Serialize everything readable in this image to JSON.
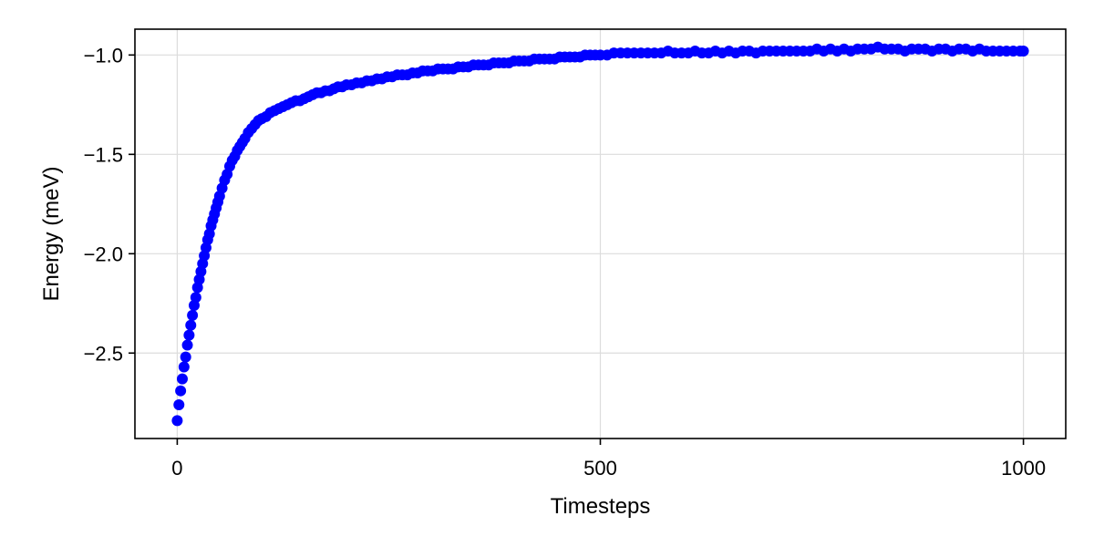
{
  "chart_data": {
    "type": "scatter",
    "title": "",
    "xlabel": "Timesteps",
    "ylabel": "Energy (meV)",
    "xlim": [
      -50,
      1050
    ],
    "ylim": [
      -2.93,
      -0.87
    ],
    "x_ticks": [
      {
        "value": 0,
        "label": "0"
      },
      {
        "value": 500,
        "label": "500"
      },
      {
        "value": 1000,
        "label": "1000"
      }
    ],
    "y_ticks": [
      {
        "value": -1.0,
        "label": "−1.0"
      },
      {
        "value": -1.5,
        "label": "−1.5"
      },
      {
        "value": -2.0,
        "label": "−2.0"
      },
      {
        "value": -2.5,
        "label": "−2.5"
      }
    ],
    "grid": true,
    "marker_color": "#0000ff",
    "series": [
      {
        "points": [
          [
            0,
            -2.84
          ],
          [
            2,
            -2.76
          ],
          [
            4,
            -2.69
          ],
          [
            6,
            -2.63
          ],
          [
            8,
            -2.57
          ],
          [
            10,
            -2.52
          ],
          [
            12,
            -2.46
          ],
          [
            14,
            -2.41
          ],
          [
            16,
            -2.36
          ],
          [
            18,
            -2.31
          ],
          [
            20,
            -2.26
          ],
          [
            22,
            -2.22
          ],
          [
            24,
            -2.17
          ],
          [
            26,
            -2.13
          ],
          [
            28,
            -2.09
          ],
          [
            30,
            -2.05
          ],
          [
            32,
            -2.01
          ],
          [
            34,
            -1.97
          ],
          [
            36,
            -1.93
          ],
          [
            38,
            -1.9
          ],
          [
            40,
            -1.86
          ],
          [
            42,
            -1.83
          ],
          [
            44,
            -1.8
          ],
          [
            46,
            -1.77
          ],
          [
            48,
            -1.74
          ],
          [
            50,
            -1.71
          ],
          [
            53,
            -1.67
          ],
          [
            56,
            -1.63
          ],
          [
            59,
            -1.6
          ],
          [
            62,
            -1.56
          ],
          [
            65,
            -1.53
          ],
          [
            68,
            -1.51
          ],
          [
            71,
            -1.48
          ],
          [
            74,
            -1.46
          ],
          [
            77,
            -1.44
          ],
          [
            80,
            -1.42
          ],
          [
            84,
            -1.39
          ],
          [
            88,
            -1.37
          ],
          [
            92,
            -1.35
          ],
          [
            96,
            -1.33
          ],
          [
            100,
            -1.32
          ],
          [
            105,
            -1.31
          ],
          [
            110,
            -1.29
          ],
          [
            115,
            -1.28
          ],
          [
            120,
            -1.27
          ],
          [
            125,
            -1.26
          ],
          [
            130,
            -1.25
          ],
          [
            135,
            -1.24
          ],
          [
            140,
            -1.23
          ],
          [
            145,
            -1.23
          ],
          [
            150,
            -1.22
          ],
          [
            155,
            -1.21
          ],
          [
            160,
            -1.2
          ],
          [
            165,
            -1.19
          ],
          [
            170,
            -1.19
          ],
          [
            175,
            -1.18
          ],
          [
            180,
            -1.18
          ],
          [
            185,
            -1.17
          ],
          [
            190,
            -1.16
          ],
          [
            195,
            -1.16
          ],
          [
            200,
            -1.15
          ],
          [
            206,
            -1.15
          ],
          [
            212,
            -1.14
          ],
          [
            218,
            -1.14
          ],
          [
            224,
            -1.13
          ],
          [
            230,
            -1.13
          ],
          [
            236,
            -1.12
          ],
          [
            242,
            -1.12
          ],
          [
            248,
            -1.11
          ],
          [
            254,
            -1.11
          ],
          [
            260,
            -1.1
          ],
          [
            266,
            -1.1
          ],
          [
            272,
            -1.1
          ],
          [
            278,
            -1.09
          ],
          [
            284,
            -1.09
          ],
          [
            290,
            -1.08
          ],
          [
            296,
            -1.08
          ],
          [
            302,
            -1.08
          ],
          [
            308,
            -1.07
          ],
          [
            314,
            -1.07
          ],
          [
            320,
            -1.07
          ],
          [
            326,
            -1.07
          ],
          [
            332,
            -1.06
          ],
          [
            338,
            -1.06
          ],
          [
            344,
            -1.06
          ],
          [
            350,
            -1.05
          ],
          [
            356,
            -1.05
          ],
          [
            362,
            -1.05
          ],
          [
            368,
            -1.05
          ],
          [
            374,
            -1.04
          ],
          [
            380,
            -1.04
          ],
          [
            386,
            -1.04
          ],
          [
            392,
            -1.04
          ],
          [
            398,
            -1.03
          ],
          [
            404,
            -1.03
          ],
          [
            410,
            -1.03
          ],
          [
            416,
            -1.03
          ],
          [
            422,
            -1.02
          ],
          [
            428,
            -1.02
          ],
          [
            434,
            -1.02
          ],
          [
            440,
            -1.02
          ],
          [
            446,
            -1.02
          ],
          [
            452,
            -1.01
          ],
          [
            458,
            -1.01
          ],
          [
            464,
            -1.01
          ],
          [
            470,
            -1.01
          ],
          [
            476,
            -1.01
          ],
          [
            482,
            -1.0
          ],
          [
            488,
            -1.0
          ],
          [
            494,
            -1.0
          ],
          [
            500,
            -1.0
          ],
          [
            508,
            -1.0
          ],
          [
            516,
            -0.99
          ],
          [
            524,
            -0.99
          ],
          [
            532,
            -0.99
          ],
          [
            540,
            -0.99
          ],
          [
            548,
            -0.99
          ],
          [
            556,
            -0.99
          ],
          [
            564,
            -0.99
          ],
          [
            572,
            -0.99
          ],
          [
            580,
            -0.98
          ],
          [
            588,
            -0.99
          ],
          [
            596,
            -0.99
          ],
          [
            604,
            -0.99
          ],
          [
            612,
            -0.98
          ],
          [
            620,
            -0.99
          ],
          [
            628,
            -0.99
          ],
          [
            636,
            -0.98
          ],
          [
            644,
            -0.99
          ],
          [
            652,
            -0.98
          ],
          [
            660,
            -0.99
          ],
          [
            668,
            -0.98
          ],
          [
            676,
            -0.98
          ],
          [
            684,
            -0.99
          ],
          [
            692,
            -0.98
          ],
          [
            700,
            -0.98
          ],
          [
            708,
            -0.98
          ],
          [
            716,
            -0.98
          ],
          [
            724,
            -0.98
          ],
          [
            732,
            -0.98
          ],
          [
            740,
            -0.98
          ],
          [
            748,
            -0.98
          ],
          [
            756,
            -0.97
          ],
          [
            764,
            -0.98
          ],
          [
            772,
            -0.97
          ],
          [
            780,
            -0.98
          ],
          [
            788,
            -0.97
          ],
          [
            796,
            -0.98
          ],
          [
            804,
            -0.97
          ],
          [
            812,
            -0.97
          ],
          [
            820,
            -0.97
          ],
          [
            828,
            -0.96
          ],
          [
            836,
            -0.97
          ],
          [
            844,
            -0.97
          ],
          [
            852,
            -0.97
          ],
          [
            860,
            -0.98
          ],
          [
            868,
            -0.97
          ],
          [
            876,
            -0.97
          ],
          [
            884,
            -0.97
          ],
          [
            892,
            -0.98
          ],
          [
            900,
            -0.97
          ],
          [
            908,
            -0.97
          ],
          [
            916,
            -0.98
          ],
          [
            924,
            -0.97
          ],
          [
            932,
            -0.97
          ],
          [
            940,
            -0.98
          ],
          [
            948,
            -0.97
          ],
          [
            956,
            -0.98
          ],
          [
            964,
            -0.98
          ],
          [
            972,
            -0.98
          ],
          [
            980,
            -0.98
          ],
          [
            988,
            -0.98
          ],
          [
            996,
            -0.98
          ],
          [
            1000,
            -0.98
          ]
        ]
      }
    ]
  }
}
